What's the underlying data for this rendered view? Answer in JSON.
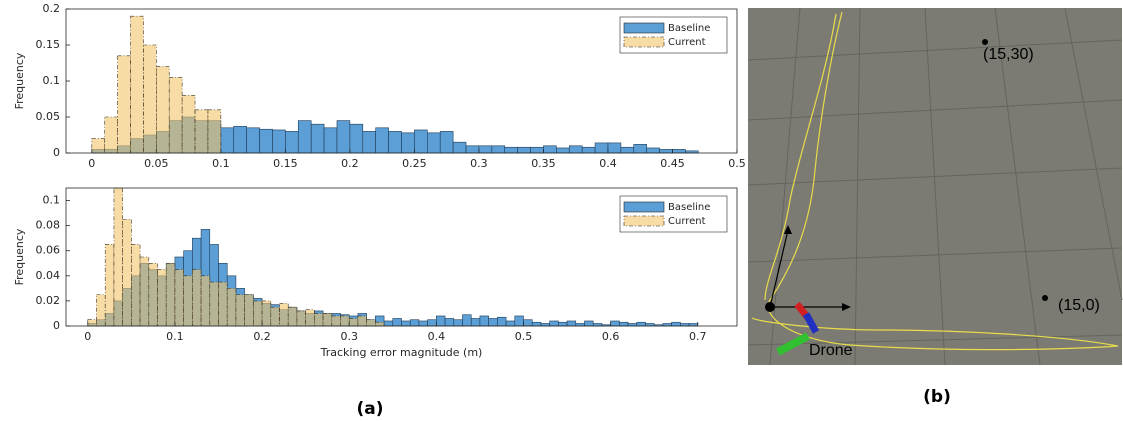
{
  "chart_data": [
    {
      "type": "histogram",
      "ylabel": "Frequency",
      "legend": "upper right",
      "xlim": [
        -0.02,
        0.5
      ],
      "xticks": [
        0,
        0.05,
        0.1,
        0.15,
        0.2,
        0.25,
        0.3,
        0.35,
        0.4,
        0.45,
        0.5
      ],
      "ylim": [
        0,
        0.2
      ],
      "yticks": [
        0,
        0.05,
        0.1,
        0.15,
        0.2
      ],
      "series": [
        {
          "name": "Baseline",
          "color": "#5b9fd6",
          "bins": [
            0,
            0.01,
            0.02,
            0.03,
            0.04,
            0.05,
            0.06,
            0.07,
            0.08,
            0.09,
            0.1,
            0.11,
            0.12,
            0.13,
            0.14,
            0.15,
            0.16,
            0.17,
            0.18,
            0.19,
            0.2,
            0.21,
            0.22,
            0.23,
            0.24,
            0.25,
            0.26,
            0.27,
            0.28,
            0.29,
            0.3,
            0.31,
            0.32,
            0.33,
            0.34,
            0.35,
            0.36,
            0.37,
            0.38,
            0.39,
            0.4,
            0.41,
            0.42,
            0.43,
            0.44,
            0.45,
            0.46,
            0.47
          ],
          "values": [
            0.005,
            0.005,
            0.01,
            0.02,
            0.025,
            0.03,
            0.045,
            0.05,
            0.045,
            0.045,
            0.035,
            0.037,
            0.035,
            0.033,
            0.032,
            0.03,
            0.045,
            0.04,
            0.035,
            0.045,
            0.04,
            0.03,
            0.035,
            0.03,
            0.028,
            0.032,
            0.028,
            0.03,
            0.015,
            0.01,
            0.01,
            0.01,
            0.008,
            0.008,
            0.008,
            0.01,
            0.007,
            0.01,
            0.008,
            0.014,
            0.014,
            0.008,
            0.012,
            0.007,
            0.005,
            0.005,
            0.003
          ]
        },
        {
          "name": "Current",
          "color": "#f2c46b",
          "bins": [
            0,
            0.01,
            0.02,
            0.03,
            0.04,
            0.05,
            0.06,
            0.07,
            0.08,
            0.09,
            0.1
          ],
          "values": [
            0.02,
            0.05,
            0.135,
            0.19,
            0.15,
            0.12,
            0.105,
            0.08,
            0.06,
            0.06
          ]
        }
      ]
    },
    {
      "type": "histogram",
      "ylabel": "Frequency",
      "xlabel": "Tracking error magnitude (m)",
      "legend": "upper right",
      "xlim": [
        -0.025,
        0.745
      ],
      "xticks": [
        0,
        0.1,
        0.2,
        0.3,
        0.4,
        0.5,
        0.6,
        0.7
      ],
      "ylim": [
        0,
        0.11
      ],
      "yticks": [
        0,
        0.02,
        0.04,
        0.06,
        0.08,
        0.1
      ],
      "series": [
        {
          "name": "Baseline",
          "color": "#5b9fd6",
          "bins": [
            0,
            0.01,
            0.02,
            0.03,
            0.04,
            0.05,
            0.06,
            0.07,
            0.08,
            0.09,
            0.1,
            0.11,
            0.12,
            0.13,
            0.14,
            0.15,
            0.16,
            0.17,
            0.18,
            0.19,
            0.2,
            0.21,
            0.22,
            0.23,
            0.24,
            0.25,
            0.26,
            0.27,
            0.28,
            0.29,
            0.3,
            0.31,
            0.32,
            0.33,
            0.34,
            0.35,
            0.36,
            0.37,
            0.38,
            0.39,
            0.4,
            0.41,
            0.42,
            0.43,
            0.44,
            0.45,
            0.46,
            0.47,
            0.48,
            0.49,
            0.5,
            0.51,
            0.52,
            0.53,
            0.54,
            0.55,
            0.56,
            0.57,
            0.58,
            0.59,
            0.6,
            0.61,
            0.62,
            0.63,
            0.64,
            0.65,
            0.66,
            0.67,
            0.68,
            0.69,
            0.7
          ],
          "values": [
            0.002,
            0.005,
            0.01,
            0.02,
            0.03,
            0.04,
            0.05,
            0.045,
            0.04,
            0.05,
            0.055,
            0.06,
            0.07,
            0.077,
            0.065,
            0.05,
            0.04,
            0.03,
            0.025,
            0.022,
            0.018,
            0.017,
            0.013,
            0.015,
            0.012,
            0.01,
            0.012,
            0.01,
            0.01,
            0.009,
            0.008,
            0.01,
            0.005,
            0.008,
            0.004,
            0.006,
            0.004,
            0.005,
            0.004,
            0.005,
            0.008,
            0.006,
            0.005,
            0.009,
            0.006,
            0.008,
            0.006,
            0.007,
            0.004,
            0.008,
            0.005,
            0.003,
            0.002,
            0.004,
            0.003,
            0.004,
            0.002,
            0.004,
            0.002,
            0.001,
            0.004,
            0.003,
            0.002,
            0.003,
            0.002,
            0.001,
            0.002,
            0.003,
            0.002,
            0.002
          ]
        },
        {
          "name": "Current",
          "color": "#f2c46b",
          "bins": [
            0,
            0.01,
            0.02,
            0.03,
            0.04,
            0.05,
            0.06,
            0.07,
            0.08,
            0.09,
            0.1,
            0.11,
            0.12,
            0.13,
            0.14,
            0.15,
            0.16,
            0.17,
            0.18,
            0.19,
            0.2,
            0.21,
            0.22,
            0.23,
            0.24,
            0.25,
            0.26,
            0.27,
            0.28,
            0.29,
            0.3,
            0.31,
            0.32,
            0.33,
            0.34
          ],
          "values": [
            0.005,
            0.025,
            0.065,
            0.11,
            0.085,
            0.065,
            0.055,
            0.05,
            0.045,
            0.05,
            0.045,
            0.04,
            0.045,
            0.04,
            0.035,
            0.035,
            0.03,
            0.025,
            0.025,
            0.02,
            0.02,
            0.015,
            0.018,
            0.015,
            0.012,
            0.013,
            0.01,
            0.01,
            0.008,
            0.008,
            0.006,
            0.008,
            0.005,
            0.003
          ]
        }
      ]
    }
  ],
  "panels": {
    "a_label": "(a)",
    "b_label": "(b)"
  },
  "scene": {
    "point_1": "(15,30)",
    "point_2": "(15,0)",
    "drone": "Drone"
  }
}
